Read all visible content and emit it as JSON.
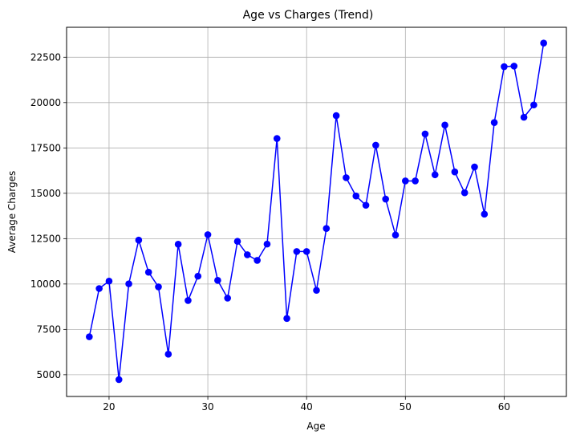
{
  "chart_data": {
    "type": "line",
    "title": "Age vs Charges (Trend)",
    "xlabel": "Age",
    "ylabel": "Average Charges",
    "xlim": [
      15.7,
      66.3
    ],
    "ylim": [
      3800,
      24150
    ],
    "xticks": [
      20,
      30,
      40,
      50,
      60
    ],
    "yticks": [
      5000,
      7500,
      10000,
      12500,
      15000,
      17500,
      20000,
      22500
    ],
    "grid": true,
    "line_color": "#0000ff",
    "marker": "circle",
    "series": [
      {
        "x": [
          18,
          19,
          20,
          21,
          22,
          23,
          24,
          25,
          26,
          27,
          28,
          29,
          30,
          31,
          32,
          33,
          34,
          35,
          36,
          37,
          38,
          39,
          40,
          41,
          42,
          43,
          44,
          45,
          46,
          47,
          48,
          49,
          50,
          51,
          52,
          53,
          54,
          55,
          56,
          57,
          58,
          59,
          60,
          61,
          62,
          63,
          64
        ],
        "values": [
          7090,
          9750,
          10160,
          4730,
          10010,
          12420,
          10650,
          9840,
          6130,
          12190,
          9090,
          10430,
          12720,
          10200,
          9220,
          12350,
          11610,
          11300,
          12200,
          18020,
          8100,
          11790,
          11790,
          9650,
          13060,
          19280,
          15860,
          14850,
          14340,
          17650,
          14680,
          12700,
          15680,
          15680,
          18270,
          16020,
          18760,
          16180,
          15030,
          16450,
          13850,
          18900,
          21980,
          22010,
          19190,
          19870,
          23280
        ]
      }
    ]
  }
}
